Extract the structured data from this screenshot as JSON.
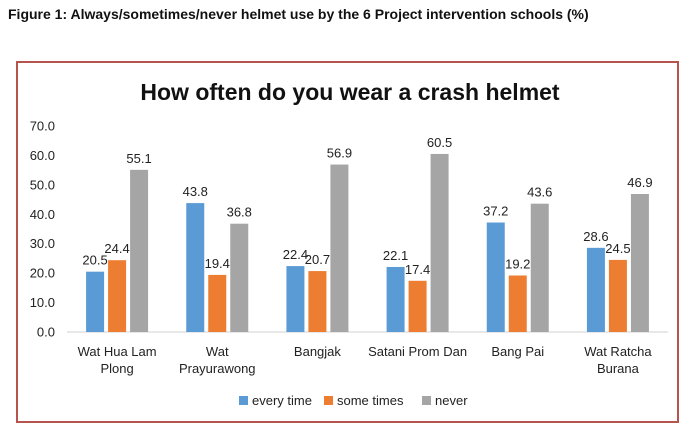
{
  "figure_caption": "Figure 1: Always/sometimes/never helmet use by the 6 Project intervention schools (%)",
  "chart_data": {
    "type": "bar",
    "title": "How often do you wear a crash helmet",
    "xlabel": "",
    "ylabel": "",
    "ylim": [
      0,
      70
    ],
    "ytick_step": 10,
    "ytick_labels": [
      "0.0",
      "10.0",
      "20.0",
      "30.0",
      "40.0",
      "50.0",
      "60.0",
      "70.0"
    ],
    "grid": false,
    "legend_position": "bottom",
    "categories": [
      [
        "Wat Hua Lam",
        "Plong"
      ],
      [
        "Wat",
        "Prayurawong"
      ],
      [
        "Bangjak"
      ],
      [
        "Satani Prom Dan"
      ],
      [
        "Bang Pai"
      ],
      [
        "Wat Ratcha",
        "Burana"
      ]
    ],
    "series": [
      {
        "name": "every time",
        "color": "#5b9bd5",
        "values": [
          20.5,
          43.8,
          22.4,
          22.1,
          37.2,
          28.6
        ]
      },
      {
        "name": "some times",
        "color": "#ed7d31",
        "values": [
          24.4,
          19.4,
          20.7,
          17.4,
          19.2,
          24.5
        ]
      },
      {
        "name": "never",
        "color": "#a5a5a5",
        "values": [
          55.1,
          36.8,
          56.9,
          60.5,
          43.6,
          46.9
        ]
      }
    ]
  }
}
